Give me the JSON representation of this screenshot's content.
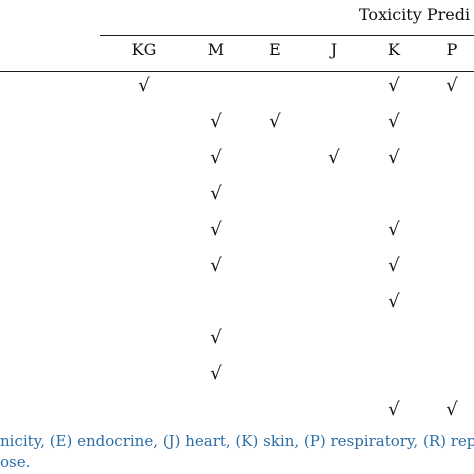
{
  "table": {
    "group_header": "Toxicity Predi",
    "columns": [
      {
        "key": "KG",
        "label": "KG"
      },
      {
        "key": "M",
        "label": "M"
      },
      {
        "key": "E",
        "label": "E"
      },
      {
        "key": "J",
        "label": "J"
      },
      {
        "key": "K",
        "label": "K"
      },
      {
        "key": "P",
        "label": "P"
      }
    ],
    "check_mark": "√",
    "rows": [
      {
        "KG": true,
        "M": false,
        "E": false,
        "J": false,
        "K": true,
        "P": true
      },
      {
        "KG": false,
        "M": true,
        "E": true,
        "J": false,
        "K": true,
        "P": false
      },
      {
        "KG": false,
        "M": true,
        "E": false,
        "J": true,
        "K": true,
        "P": false
      },
      {
        "KG": false,
        "M": true,
        "E": false,
        "J": false,
        "K": false,
        "P": false
      },
      {
        "KG": false,
        "M": true,
        "E": false,
        "J": false,
        "K": true,
        "P": false
      },
      {
        "KG": false,
        "M": true,
        "E": false,
        "J": false,
        "K": true,
        "P": false
      },
      {
        "KG": false,
        "M": false,
        "E": false,
        "J": false,
        "K": true,
        "P": false
      },
      {
        "KG": false,
        "M": true,
        "E": false,
        "J": false,
        "K": false,
        "P": false
      },
      {
        "KG": false,
        "M": true,
        "E": false,
        "J": false,
        "K": false,
        "P": false
      },
      {
        "KG": false,
        "M": false,
        "E": false,
        "J": false,
        "K": true,
        "P": true
      }
    ]
  },
  "footnote": {
    "line1": "nicity, (E) endocrine, (J) heart, (K) skin, (P) respiratory, (R) repr",
    "line2": "ose."
  }
}
